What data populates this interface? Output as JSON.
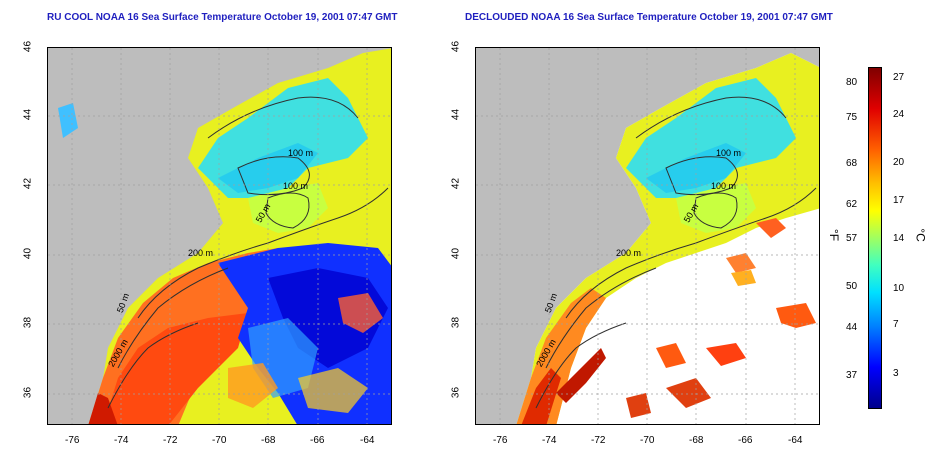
{
  "left_panel": {
    "title": "RU COOL NOAA 16 Sea Surface Temperature October 19, 2001 07:47 GMT"
  },
  "right_panel": {
    "title": "DECLOUDED NOAA 16 Sea Surface Temperature October 19, 2001 07:47 GMT"
  },
  "axes": {
    "x_ticks": [
      "-76",
      "-74",
      "-72",
      "-70",
      "-68",
      "-66",
      "-64"
    ],
    "y_ticks": [
      "36",
      "38",
      "40",
      "42",
      "44",
      "46"
    ]
  },
  "contour_labels": [
    "100 m",
    "100 m",
    "50 m",
    "200 m",
    "50 m",
    "2000 m"
  ],
  "colorbar": {
    "fahrenheit_ticks": [
      "80",
      "75",
      "68",
      "62",
      "57",
      "50",
      "44",
      "37"
    ],
    "celsius_ticks": [
      "27",
      "24",
      "20",
      "17",
      "14",
      "10",
      "7",
      "3"
    ],
    "fahrenheit_unit": "°F",
    "celsius_unit": "°C"
  },
  "colors": {
    "land": "#c0c0c0",
    "title": "#1f1fbf",
    "warm": "#ff5a00",
    "cool": "#00d0ff",
    "cold": "#0020ff"
  }
}
